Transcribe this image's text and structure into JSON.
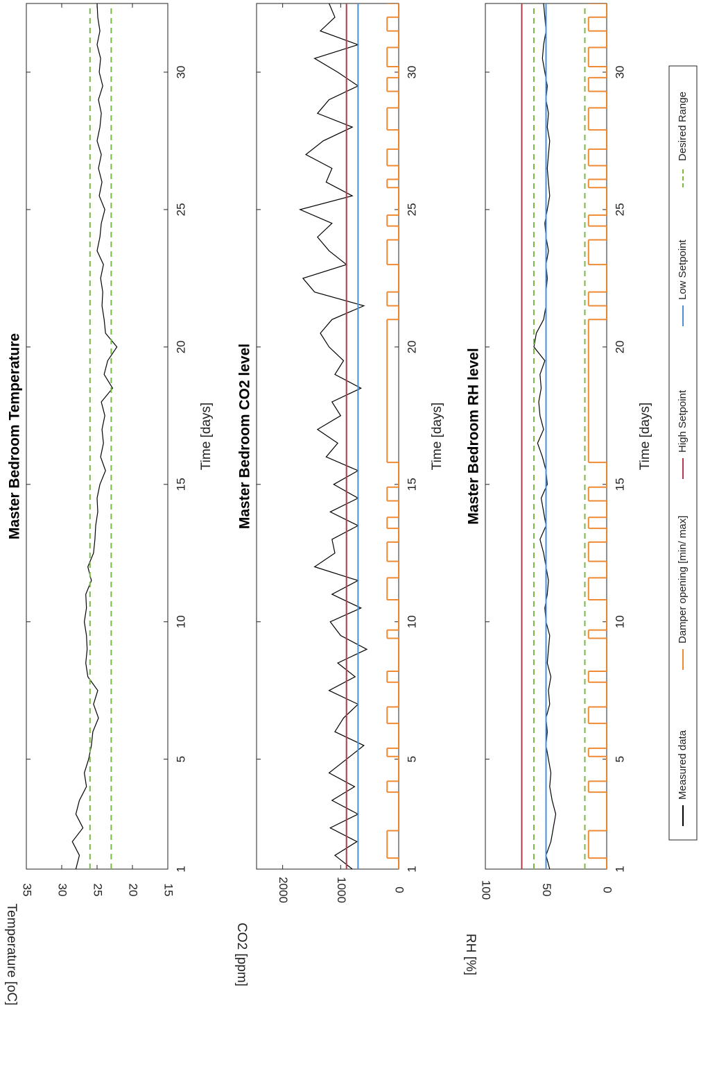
{
  "chart_data": [
    {
      "type": "line",
      "title": "Master Bedroom Temperature",
      "xlabel": "Time [days]",
      "ylabel": "Temperature [oC]",
      "xlim": [
        1,
        32.5
      ],
      "xticks": [
        1,
        5,
        10,
        15,
        20,
        25,
        30
      ],
      "ylim": [
        15,
        35
      ],
      "yticks": [
        15,
        20,
        25,
        30,
        35
      ],
      "series": [
        {
          "color": "#000000",
          "dash": false,
          "x": [
            1,
            1.5,
            2,
            2.5,
            3,
            3.5,
            4,
            4.5,
            5,
            5.5,
            6,
            6.5,
            7,
            7.5,
            8,
            8.5,
            9,
            9.5,
            10,
            10.5,
            11,
            11.5,
            12,
            12.5,
            13,
            13.5,
            14,
            14.5,
            15,
            15.5,
            16,
            16.5,
            17,
            17.5,
            18,
            18.5,
            19,
            19.5,
            20,
            20.5,
            21,
            21.5,
            22,
            22.5,
            23,
            23.5,
            24,
            24.5,
            25,
            25.5,
            26,
            26.5,
            27,
            27.5,
            28,
            28.5,
            29,
            29.5,
            30,
            30.5,
            31,
            31.5,
            32,
            32.5
          ],
          "values": [
            28,
            27.5,
            28.5,
            27,
            28,
            27.5,
            26.5,
            26.8,
            26.2,
            25.8,
            25.6,
            24.8,
            25.5,
            24.9,
            26.3,
            26.6,
            26.4,
            26.5,
            26.8,
            26.5,
            26.6,
            25.8,
            26.3,
            25.5,
            25.3,
            25.2,
            24.9,
            25.0,
            24.6,
            23.8,
            24.5,
            24.1,
            24.3,
            23.9,
            24.4,
            22.8,
            24.0,
            23.5,
            22.2,
            23.8,
            24.0,
            24.3,
            24.2,
            24.5,
            24.1,
            25.0,
            24.6,
            24.4,
            23.9,
            24.7,
            24.3,
            24.8,
            24.4,
            25.0,
            24.6,
            24.4,
            24.8,
            24.2,
            24.7,
            24.5,
            25.0,
            24.6,
            24.9,
            25.0
          ]
        },
        {
          "color": "#77bb44",
          "dash": true,
          "x": [
            1,
            32.5
          ],
          "values": [
            26,
            26
          ]
        },
        {
          "color": "#77bb44",
          "dash": true,
          "x": [
            1,
            32.5
          ],
          "values": [
            23,
            23
          ]
        }
      ]
    },
    {
      "type": "line",
      "title": "Master Bedroom CO2 level",
      "xlabel": "Time [days]",
      "ylabel": "CO2 [ppm]",
      "xlim": [
        1,
        32.5
      ],
      "xticks": [
        1,
        5,
        10,
        15,
        20,
        25,
        30
      ],
      "ylim": [
        0,
        2450
      ],
      "yticks": [
        0,
        1000,
        2000
      ],
      "series": [
        {
          "color": "#000000",
          "dash": false,
          "x": [
            1,
            1.5,
            2,
            2.5,
            3,
            3.5,
            4,
            4.5,
            5,
            5.5,
            6,
            6.5,
            7,
            7.5,
            8,
            8.5,
            9,
            9.5,
            10,
            10.5,
            11,
            11.5,
            12,
            12.5,
            13,
            13.5,
            14,
            14.5,
            15,
            15.5,
            16,
            16.5,
            17,
            17.5,
            18,
            18.5,
            19,
            19.5,
            20,
            20.5,
            21,
            21.5,
            22,
            22.5,
            23,
            23.5,
            24,
            24.5,
            25,
            25.5,
            26,
            26.5,
            27,
            27.5,
            28,
            28.5,
            29,
            29.5,
            30,
            30.5,
            31,
            31.5,
            32,
            32.5
          ],
          "values": [
            800,
            1100,
            720,
            1180,
            700,
            1150,
            760,
            1200,
            900,
            600,
            1100,
            950,
            700,
            1200,
            750,
            1050,
            550,
            1000,
            1180,
            650,
            1150,
            700,
            1450,
            1100,
            1150,
            700,
            1180,
            700,
            1120,
            700,
            1250,
            1050,
            1400,
            1000,
            1150,
            650,
            1100,
            950,
            1200,
            1350,
            1150,
            600,
            1450,
            1650,
            900,
            1200,
            1400,
            1150,
            1700,
            800,
            1250,
            1150,
            1600,
            1300,
            800,
            1400,
            1200,
            700,
            1050,
            1450,
            700,
            1350,
            1100,
            1200
          ]
        },
        {
          "color": "#ee8a33",
          "dash": false,
          "step": true,
          "x": [
            1,
            1.4,
            2.4,
            3.8,
            4.2,
            5.1,
            5.4,
            6.3,
            6.9,
            7.8,
            8.2,
            9.4,
            9.7,
            10.8,
            11.6,
            12.2,
            12.9,
            13.4,
            13.8,
            14.4,
            14.9,
            15.8,
            21.0,
            21.5,
            22.0,
            23.0,
            23.9,
            24.4,
            24.8,
            25.8,
            26.1,
            26.6,
            27.2,
            27.9,
            28.7,
            29.3,
            29.8,
            30.2,
            30.9,
            31.5,
            32.0,
            32.5
          ],
          "values": [
            0,
            200,
            0,
            200,
            0,
            200,
            0,
            200,
            0,
            200,
            0,
            200,
            0,
            200,
            0,
            200,
            0,
            200,
            0,
            200,
            0,
            200,
            0,
            200,
            0,
            200,
            0,
            200,
            0,
            200,
            0,
            200,
            0,
            200,
            0,
            200,
            0,
            200,
            0,
            200,
            0,
            200
          ]
        },
        {
          "color": "#b23a48",
          "dash": false,
          "x": [
            1,
            32.5
          ],
          "values": [
            900,
            900
          ]
        },
        {
          "color": "#4a90d9",
          "dash": false,
          "x": [
            1,
            32.5
          ],
          "values": [
            700,
            700
          ]
        }
      ]
    },
    {
      "type": "line",
      "title": "Master Bedroom RH level",
      "xlabel": "Time [days]",
      "ylabel": "RH [%]",
      "xlim": [
        1,
        32.5
      ],
      "xticks": [
        1,
        5,
        10,
        15,
        20,
        25,
        30
      ],
      "ylim": [
        0,
        100
      ],
      "yticks": [
        0,
        50,
        100
      ],
      "series": [
        {
          "color": "#000000",
          "dash": false,
          "x": [
            1,
            1.5,
            2,
            2.5,
            3,
            3.5,
            4,
            4.5,
            5,
            5.5,
            6,
            6.5,
            7,
            7.5,
            8,
            8.5,
            9,
            9.5,
            10,
            10.5,
            11,
            11.5,
            12,
            12.5,
            13,
            13.5,
            14,
            14.5,
            15,
            15.5,
            16,
            16.5,
            17,
            17.5,
            18,
            18.5,
            19,
            19.5,
            20,
            20.5,
            21,
            21.5,
            22,
            22.5,
            23,
            23.5,
            24,
            24.5,
            25,
            25.5,
            26,
            26.5,
            27,
            27.5,
            28,
            28.5,
            29,
            29.5,
            30,
            30.5,
            31,
            31.5,
            32,
            32.5
          ],
          "values": [
            47,
            50,
            46,
            44,
            42,
            45,
            47,
            46,
            48,
            50,
            49,
            50,
            47,
            48,
            46,
            49,
            48,
            47,
            50,
            51,
            49,
            48,
            50,
            52,
            55,
            50,
            52,
            54,
            49,
            50,
            53,
            57,
            52,
            55,
            56,
            54,
            55,
            51,
            60,
            58,
            52,
            50,
            50,
            49,
            50,
            48,
            50,
            51,
            49,
            47,
            48,
            49,
            48,
            47,
            49,
            48,
            50,
            49,
            51,
            53,
            52,
            50,
            51,
            52
          ]
        },
        {
          "color": "#ee8a33",
          "dash": false,
          "step": true,
          "x": [
            1,
            1.4,
            2.4,
            3.8,
            4.2,
            5.1,
            5.4,
            6.3,
            6.9,
            7.8,
            8.2,
            9.4,
            9.7,
            10.8,
            11.6,
            12.2,
            12.9,
            13.4,
            13.8,
            14.4,
            14.9,
            15.8,
            21.0,
            21.5,
            22.0,
            23.0,
            23.9,
            24.4,
            24.8,
            25.8,
            26.1,
            26.6,
            27.2,
            27.9,
            28.7,
            29.3,
            29.8,
            30.2,
            30.9,
            31.5,
            32.0,
            32.5
          ],
          "values": [
            0,
            15,
            0,
            15,
            0,
            15,
            0,
            15,
            0,
            15,
            0,
            15,
            0,
            15,
            0,
            15,
            0,
            15,
            0,
            15,
            0,
            15,
            0,
            15,
            0,
            15,
            0,
            15,
            0,
            15,
            0,
            15,
            0,
            15,
            0,
            15,
            0,
            15,
            0,
            15,
            0,
            15
          ]
        },
        {
          "color": "#b23a48",
          "dash": false,
          "x": [
            1,
            32.5
          ],
          "values": [
            70,
            70
          ]
        },
        {
          "color": "#4a90d9",
          "dash": false,
          "x": [
            1,
            32.5
          ],
          "values": [
            50,
            50
          ]
        },
        {
          "color": "#77bb44",
          "dash": true,
          "x": [
            1,
            32.5
          ],
          "values": [
            60,
            60
          ]
        },
        {
          "color": "#77bb44",
          "dash": true,
          "x": [
            1,
            32.5
          ],
          "values": [
            18,
            18
          ]
        }
      ]
    }
  ],
  "legend": [
    {
      "name": "Measured data",
      "color": "#000000",
      "dash": false
    },
    {
      "name": "Damper opening [min/ max]",
      "color": "#ee8a33",
      "dash": false
    },
    {
      "name": "High Setpoint",
      "color": "#b23a48",
      "dash": false
    },
    {
      "name": "Low Setpoint",
      "color": "#4a90d9",
      "dash": false
    },
    {
      "name": "Desired Range",
      "color": "#77bb44",
      "dash": true
    }
  ]
}
